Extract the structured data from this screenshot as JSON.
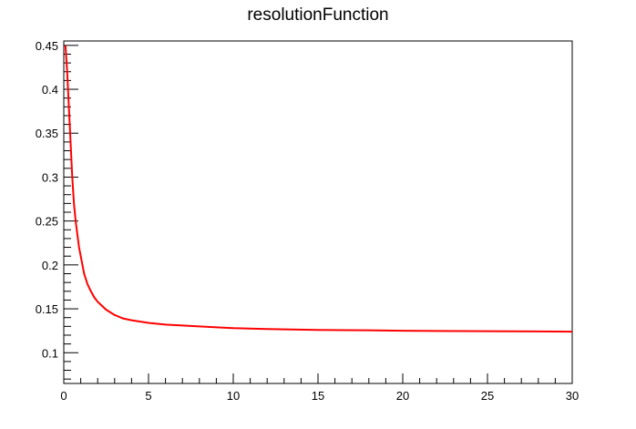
{
  "chart_data": {
    "type": "line",
    "title": "resolutionFunction",
    "xlabel": "",
    "ylabel": "",
    "xlim": [
      0,
      30
    ],
    "ylim": [
      0.065,
      0.455
    ],
    "x_ticks": [
      0,
      5,
      10,
      15,
      20,
      25,
      30
    ],
    "x_tick_labels": [
      "0",
      "5",
      "10",
      "15",
      "20",
      "25",
      "30"
    ],
    "y_ticks": [
      0.1,
      0.15,
      0.2,
      0.25,
      0.3,
      0.35,
      0.4,
      0.45
    ],
    "y_tick_labels": [
      "0.1",
      "0.15",
      "0.2",
      "0.25",
      "0.3",
      "0.35",
      "0.4",
      "0.45"
    ],
    "grid": false,
    "legend": "none",
    "series": [
      {
        "color": "#ff0000",
        "x": [
          0.1,
          0.2,
          0.3,
          0.4,
          0.5,
          0.6,
          0.7,
          0.8,
          0.9,
          1.0,
          1.2,
          1.4,
          1.6,
          1.8,
          2.0,
          2.5,
          3.0,
          3.5,
          4.0,
          5.0,
          6.0,
          7.0,
          8.0,
          10.0,
          12.0,
          15.0,
          18.0,
          20.0,
          22.0,
          25.0,
          28.0,
          30.0
        ],
        "y": [
          0.45,
          0.42,
          0.38,
          0.34,
          0.3,
          0.27,
          0.25,
          0.235,
          0.22,
          0.21,
          0.19,
          0.178,
          0.17,
          0.163,
          0.158,
          0.149,
          0.143,
          0.139,
          0.137,
          0.134,
          0.132,
          0.131,
          0.13,
          0.128,
          0.127,
          0.126,
          0.1255,
          0.125,
          0.1248,
          0.1245,
          0.1242,
          0.124
        ]
      }
    ]
  }
}
